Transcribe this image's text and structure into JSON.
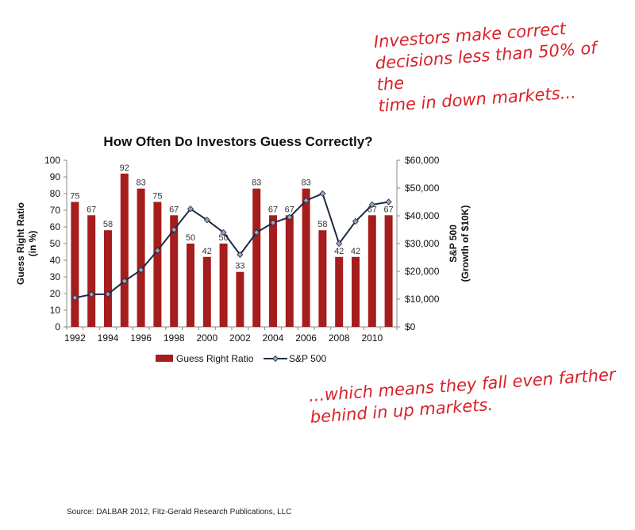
{
  "annotations": {
    "top": "Investors make correct\ndecisions less than 50% of the\ntime in down markets...",
    "bottom": "...which means they fall even farther\nbehind in up markets."
  },
  "source": "Source: DALBAR 2012, Fitz-Gerald Research Publications, LLC",
  "colors": {
    "bar": "#a51d1d",
    "line": "#1f2a44",
    "marker": "#9aa3b8"
  },
  "chart_data": {
    "type": "bar",
    "title": "How Often Do Investors Guess Correctly?",
    "ylabel": "Guess Right Ratio\n(in %)",
    "y2label": "S&P 500\n(Growth of $10K)",
    "ylim": [
      0,
      100
    ],
    "y2lim": [
      0,
      60000
    ],
    "yticks": [
      "0",
      "10",
      "20",
      "30",
      "40",
      "50",
      "60",
      "70",
      "80",
      "90",
      "100"
    ],
    "y2ticks": [
      "$0",
      "$10,000",
      "$20,000",
      "$30,000",
      "$40,000",
      "$50,000",
      "$60,000"
    ],
    "xticks": [
      "1992",
      "1994",
      "1996",
      "1998",
      "2000",
      "2002",
      "2004",
      "2006",
      "2008",
      "2010"
    ],
    "categories": [
      "1992",
      "1993",
      "1994",
      "1995",
      "1996",
      "1997",
      "1998",
      "1999",
      "2000",
      "2001",
      "2002",
      "2003",
      "2004",
      "2005",
      "2006",
      "2007",
      "2008",
      "2009",
      "2010",
      "2011"
    ],
    "series": [
      {
        "name": "Guess Right Ratio",
        "type": "bar",
        "axis": "left",
        "values": [
          75,
          67,
          58,
          92,
          83,
          75,
          67,
          50,
          42,
          50,
          33,
          83,
          67,
          67,
          83,
          58,
          42,
          42,
          67,
          67
        ]
      },
      {
        "name": "S&P 500",
        "type": "line",
        "axis": "right",
        "values": [
          10500,
          11700,
          11800,
          16500,
          20500,
          27500,
          35000,
          42500,
          38500,
          34000,
          26000,
          34000,
          37500,
          39500,
          45500,
          48000,
          30000,
          38000,
          44000,
          45000
        ]
      }
    ],
    "legend": "bottom",
    "grid": false
  }
}
